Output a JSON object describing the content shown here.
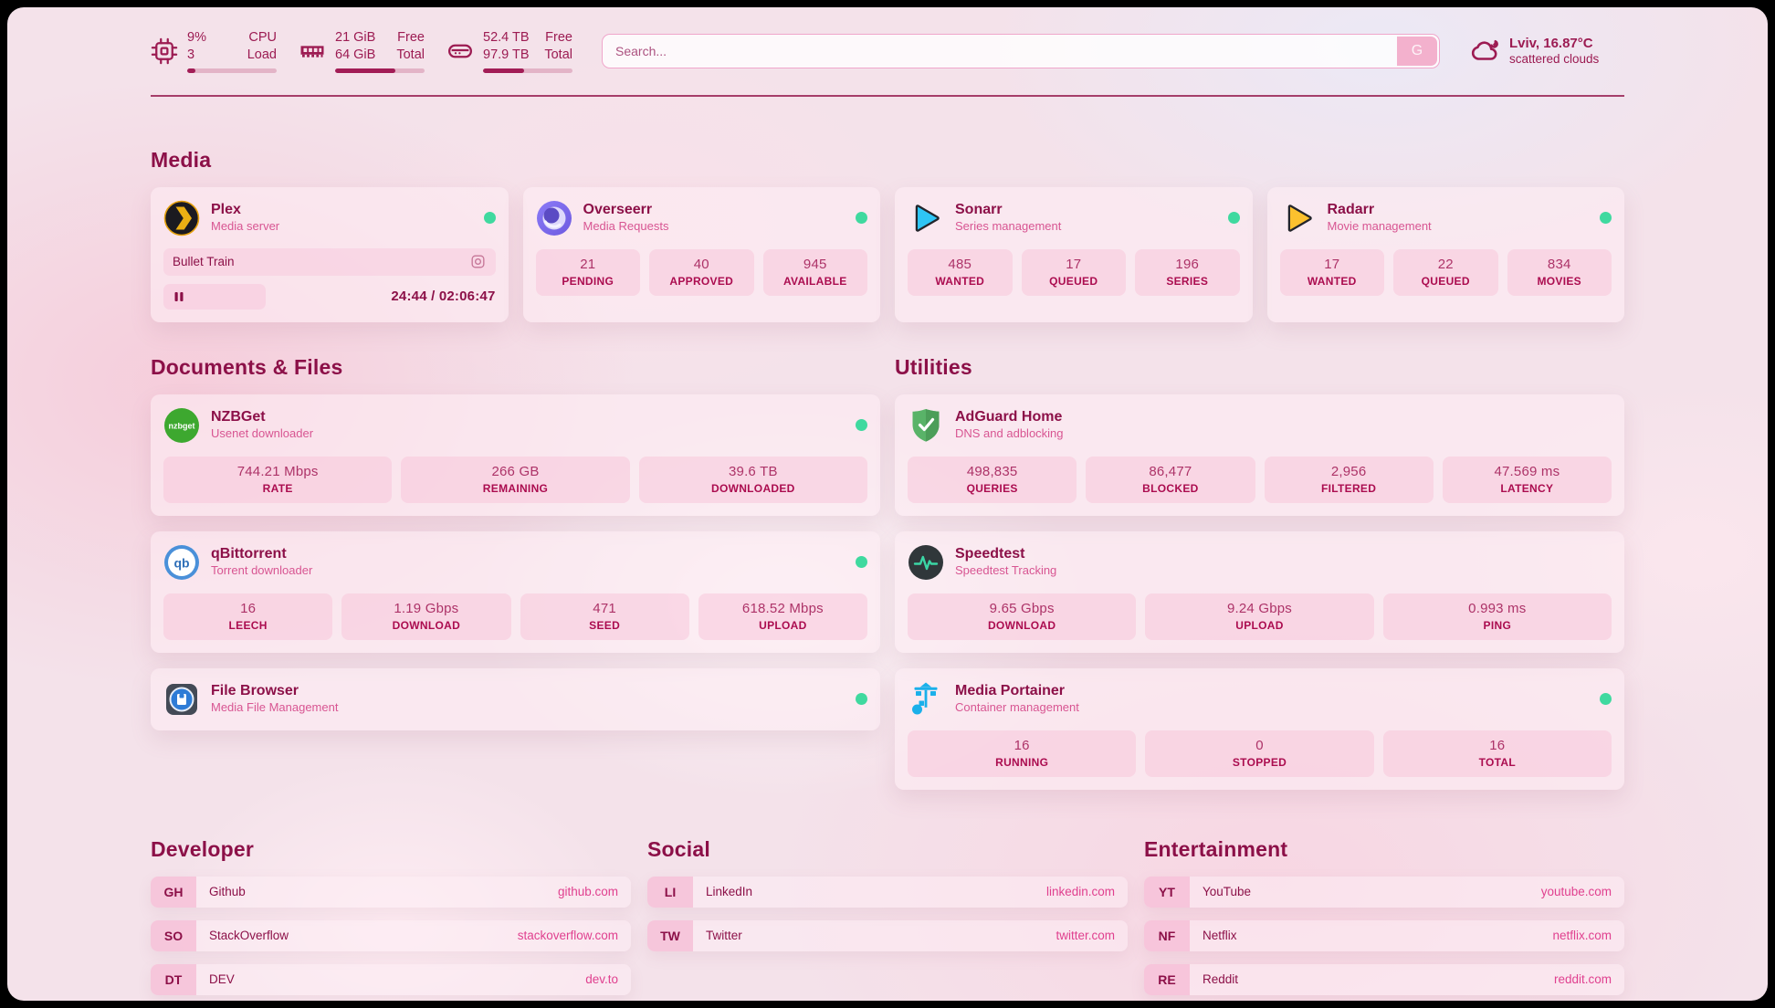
{
  "topbar": {
    "cpu": {
      "value_top": "9%",
      "value_bottom": "3",
      "label_top": "CPU",
      "label_bottom": "Load",
      "progress": 9
    },
    "memory": {
      "value_top": "21 GiB",
      "value_bottom": "64 GiB",
      "label_top": "Free",
      "label_bottom": "Total",
      "progress": 67
    },
    "disk": {
      "value_top": "52.4 TB",
      "value_bottom": "97.9 TB",
      "label_top": "Free",
      "label_bottom": "Total",
      "progress": 46
    },
    "search": {
      "placeholder": "Search...",
      "button_label": "G"
    },
    "weather": {
      "location_temp": "Lviv, 16.87°C",
      "condition": "scattered clouds"
    }
  },
  "media": {
    "title": "Media",
    "plex": {
      "title": "Plex",
      "subtitle": "Media server",
      "now_playing": "Bullet Train",
      "time": "24:44 / 02:06:47"
    },
    "overseerr": {
      "title": "Overseerr",
      "subtitle": "Media Requests",
      "stats": [
        {
          "value": "21",
          "label": "PENDING"
        },
        {
          "value": "40",
          "label": "APPROVED"
        },
        {
          "value": "945",
          "label": "AVAILABLE"
        }
      ]
    },
    "sonarr": {
      "title": "Sonarr",
      "subtitle": "Series management",
      "stats": [
        {
          "value": "485",
          "label": "WANTED"
        },
        {
          "value": "17",
          "label": "QUEUED"
        },
        {
          "value": "196",
          "label": "SERIES"
        }
      ]
    },
    "radarr": {
      "title": "Radarr",
      "subtitle": "Movie management",
      "stats": [
        {
          "value": "17",
          "label": "WANTED"
        },
        {
          "value": "22",
          "label": "QUEUED"
        },
        {
          "value": "834",
          "label": "MOVIES"
        }
      ]
    }
  },
  "documents": {
    "title": "Documents & Files",
    "nzbget": {
      "title": "NZBGet",
      "subtitle": "Usenet downloader",
      "stats": [
        {
          "value": "744.21 Mbps",
          "label": "RATE"
        },
        {
          "value": "266 GB",
          "label": "REMAINING"
        },
        {
          "value": "39.6 TB",
          "label": "DOWNLOADED"
        }
      ]
    },
    "qbittorrent": {
      "title": "qBittorrent",
      "subtitle": "Torrent downloader",
      "stats": [
        {
          "value": "16",
          "label": "LEECH"
        },
        {
          "value": "1.19 Gbps",
          "label": "DOWNLOAD"
        },
        {
          "value": "471",
          "label": "SEED"
        },
        {
          "value": "618.52 Mbps",
          "label": "UPLOAD"
        }
      ]
    },
    "filebrowser": {
      "title": "File Browser",
      "subtitle": "Media File Management"
    }
  },
  "utilities": {
    "title": "Utilities",
    "adguard": {
      "title": "AdGuard Home",
      "subtitle": "DNS and adblocking",
      "stats": [
        {
          "value": "498,835",
          "label": "QUERIES"
        },
        {
          "value": "86,477",
          "label": "BLOCKED"
        },
        {
          "value": "2,956",
          "label": "FILTERED"
        },
        {
          "value": "47.569 ms",
          "label": "LATENCY"
        }
      ]
    },
    "speedtest": {
      "title": "Speedtest",
      "subtitle": "Speedtest Tracking",
      "stats": [
        {
          "value": "9.65 Gbps",
          "label": "DOWNLOAD"
        },
        {
          "value": "9.24 Gbps",
          "label": "UPLOAD"
        },
        {
          "value": "0.993 ms",
          "label": "PING"
        }
      ]
    },
    "portainer": {
      "title": "Media Portainer",
      "subtitle": "Container management",
      "stats": [
        {
          "value": "16",
          "label": "RUNNING"
        },
        {
          "value": "0",
          "label": "STOPPED"
        },
        {
          "value": "16",
          "label": "TOTAL"
        }
      ]
    }
  },
  "bookmarks": {
    "developer": {
      "title": "Developer",
      "items": [
        {
          "abbr": "GH",
          "name": "Github",
          "url": "github.com"
        },
        {
          "abbr": "SO",
          "name": "StackOverflow",
          "url": "stackoverflow.com"
        },
        {
          "abbr": "DT",
          "name": "DEV",
          "url": "dev.to"
        }
      ]
    },
    "social": {
      "title": "Social",
      "items": [
        {
          "abbr": "LI",
          "name": "LinkedIn",
          "url": "linkedin.com"
        },
        {
          "abbr": "TW",
          "name": "Twitter",
          "url": "twitter.com"
        }
      ]
    },
    "entertainment": {
      "title": "Entertainment",
      "items": [
        {
          "abbr": "YT",
          "name": "YouTube",
          "url": "youtube.com"
        },
        {
          "abbr": "NF",
          "name": "Netflix",
          "url": "netflix.com"
        },
        {
          "abbr": "RE",
          "name": "Reddit",
          "url": "reddit.com"
        }
      ]
    }
  },
  "icons": {
    "nzbget_label": "nzbget",
    "qbittorrent_label": "qb"
  },
  "colors": {
    "accent": "#8c1048",
    "subtitle_pink": "#d85592",
    "status_green": "#3fd99f",
    "link_pink": "#e0408f",
    "bar_fill": "#a21d56"
  }
}
